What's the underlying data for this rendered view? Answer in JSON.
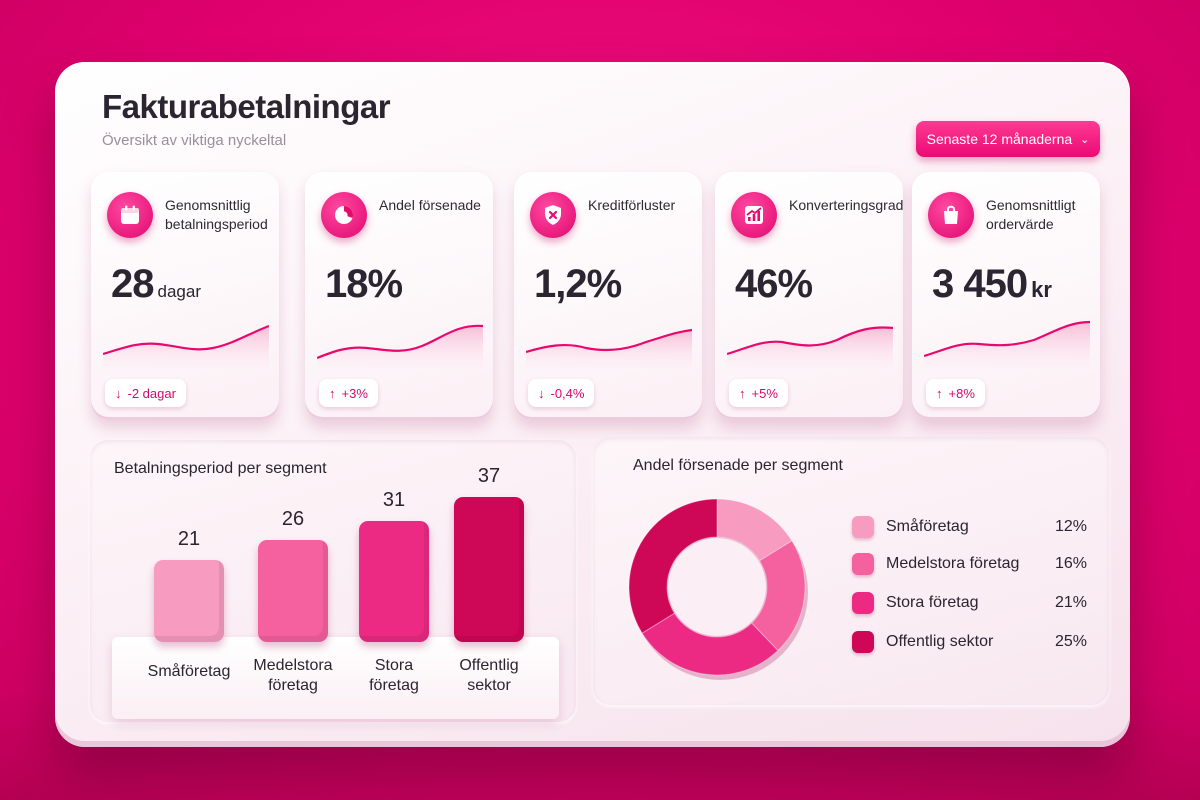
{
  "header": {
    "title": "Fakturabetalningar",
    "subtitle": "Översikt av viktiga nyckeltal",
    "period_label": "Senaste 12 månaderna"
  },
  "kpis": [
    {
      "label": "Genomsnittlig betalningsperiod",
      "value": "28",
      "unit": "dagar",
      "delta": "-2 dagar",
      "direction": "down",
      "icon": "calendar-icon"
    },
    {
      "label": "Andel försenade",
      "value": "18%",
      "unit": "",
      "delta": "+3%",
      "direction": "up",
      "icon": "pie-icon"
    },
    {
      "label": "Kreditförluster",
      "value": "1,2%",
      "unit": "",
      "delta": "-0,4%",
      "direction": "down",
      "icon": "shield-x-icon"
    },
    {
      "label": "Konverteringsgrad",
      "value": "46%",
      "unit": "",
      "delta": "+5%",
      "direction": "up",
      "icon": "growth-chart-icon"
    },
    {
      "label": "Genomsnittligt ordervärde",
      "value": "3 450",
      "unit": "kr",
      "delta": "+8%",
      "direction": "up",
      "icon": "shopping-bag-icon"
    }
  ],
  "bar_panel": {
    "title": "Betalningsperiod per segment"
  },
  "donut_panel": {
    "title": "Andel försenade per segment"
  },
  "colors": {
    "accent": "#e8096f",
    "segments": [
      "#f79bc1",
      "#f5609f",
      "#ec2a84",
      "#cf0757"
    ]
  },
  "chart_data": [
    {
      "type": "bar",
      "title": "Betalningsperiod per segment",
      "categories": [
        "Småföretag",
        "Medelstora företag",
        "Stora företag",
        "Offentlig sektor"
      ],
      "category_lines": [
        [
          "Småföretag"
        ],
        [
          "Medelstora",
          "företag"
        ],
        [
          "Stora",
          "företag"
        ],
        [
          "Offentlig",
          "sektor"
        ]
      ],
      "values": [
        21,
        26,
        31,
        37
      ]
    },
    {
      "type": "pie",
      "title": "Andel försenade per segment",
      "categories": [
        "Småföretag",
        "Medelstora företag",
        "Stora företag",
        "Offentlig sektor"
      ],
      "values": [
        12,
        16,
        21,
        25
      ],
      "value_labels": [
        "12%",
        "16%",
        "21%",
        "25%"
      ]
    }
  ]
}
